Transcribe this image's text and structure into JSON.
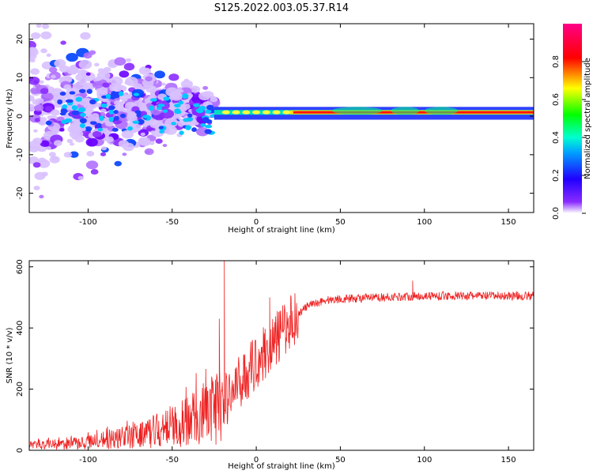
{
  "title": "S125.2022.003.05.37.R14",
  "chart_data": [
    {
      "type": "heatmap",
      "xlabel": "Height of straight line (km)",
      "ylabel": "Frequency (Hz)",
      "xlim": [
        -135,
        165
      ],
      "ylim": [
        -25,
        24
      ],
      "xticks": [
        -100,
        -50,
        0,
        50,
        100,
        150
      ],
      "yticks": [
        -20,
        -10,
        0,
        10,
        20
      ],
      "colorbar": {
        "label": "Normalized spectral amplitude",
        "range": [
          0,
          1
        ],
        "ticks": [
          "0.0",
          "0.2",
          "0.4",
          "0.6",
          "0.8"
        ],
        "tick_values": [
          0,
          0.2,
          0.4,
          0.6,
          0.8
        ],
        "colors": [
          "#ffffff",
          "#6a00ff",
          "#0000ff",
          "#00ffff",
          "#00ff00",
          "#ffff00",
          "#ff0000",
          "#ff0080"
        ]
      },
      "ridge": {
        "x_start": -25,
        "x_end": 165,
        "center_freq_hz": 1,
        "band_hz": [
          -0.5,
          2
        ]
      },
      "scatter_region": {
        "x": [
          -135,
          -25
        ],
        "freq_hz": [
          -25,
          24
        ]
      }
    },
    {
      "type": "line",
      "xlabel": "Height of straight line (km)",
      "ylabel": "SNR (10 * v/v)",
      "xlim": [
        -135,
        165
      ],
      "ylim": [
        0,
        620
      ],
      "xticks": [
        -100,
        -50,
        0,
        50,
        100,
        150
      ],
      "yticks": [
        0,
        200,
        400,
        600
      ],
      "color": "#ee2020",
      "trend": {
        "x": [
          -135,
          -100,
          -75,
          -50,
          -40,
          -30,
          -20,
          0,
          10,
          20,
          30,
          40,
          50,
          100,
          165
        ],
        "y": [
          15,
          25,
          45,
          75,
          95,
          120,
          150,
          290,
          350,
          420,
          470,
          490,
          495,
          505,
          505
        ]
      },
      "peaks": [
        {
          "x": -19,
          "y": 620
        },
        {
          "x": -22,
          "y": 430
        },
        {
          "x": 8,
          "y": 500
        },
        {
          "x": 93,
          "y": 555
        }
      ]
    }
  ]
}
